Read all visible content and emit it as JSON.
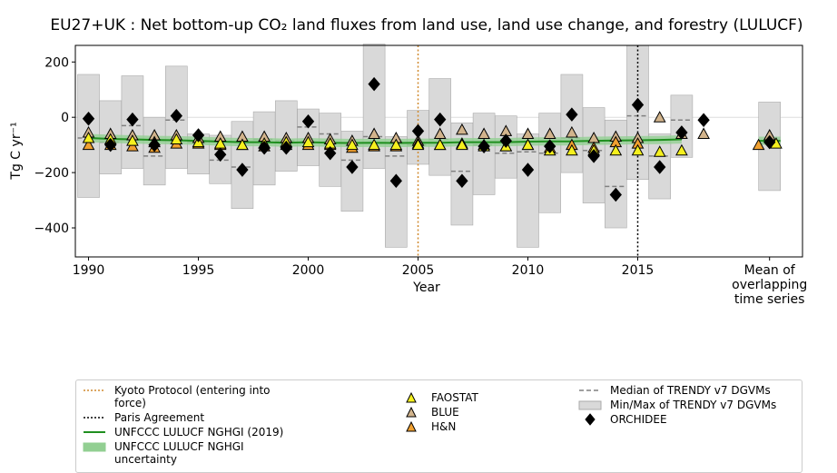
{
  "chart_data": {
    "type": "scatter",
    "title": "EU27+UK : Net bottom-up CO₂ land fluxes from land use, land use change, and forestry (LULUCF)",
    "xlabel": "Year",
    "ylabel": "Tg C yr⁻¹",
    "xlim": [
      1989.4,
      2022.5
    ],
    "ylim": [
      -505,
      260
    ],
    "xticks": [
      1990,
      1995,
      2000,
      2005,
      2010,
      2015,
      {
        "value": 2021,
        "label": "Mean of\noverlapping\ntime series"
      }
    ],
    "yticks": [
      {
        "value": -400,
        "label": "−400"
      },
      {
        "value": -200,
        "label": "−200"
      },
      0,
      200
    ],
    "x": [
      1990,
      1991,
      1992,
      1993,
      1994,
      1995,
      1996,
      1997,
      1998,
      1999,
      2000,
      2001,
      2002,
      2003,
      2004,
      2005,
      2006,
      2007,
      2008,
      2009,
      2010,
      2011,
      2012,
      2013,
      2014,
      2015,
      2016,
      2017,
      2018
    ],
    "events": [
      {
        "name": "Kyoto Protocol (entering into force)",
        "x": 2005,
        "color": "#d08a2e"
      },
      {
        "name": "Paris Agreement",
        "x": 2015,
        "color": "#000000"
      }
    ],
    "series": [
      {
        "name": "UNFCCC LULUCF NGHGI (2019)",
        "kind": "line",
        "color": "#1f8f1f",
        "values": [
          -75,
          -78,
          -80,
          -82,
          -83,
          -85,
          -88,
          -90,
          -90,
          -92,
          -90,
          -92,
          -93,
          -92,
          -93,
          -92,
          -92,
          -90,
          -90,
          -90,
          -88,
          -87,
          -87,
          -85,
          -84,
          -83,
          -82,
          -80,
          null
        ],
        "mean": -85,
        "uncertainty": {
          "name": "UNFCCC LULUCF NGHGI uncertainty",
          "color": "#92cf92",
          "value": 15
        }
      },
      {
        "name": "FAOSTAT",
        "kind": "triangle",
        "color": "#f5f01e",
        "values": [
          -75,
          -80,
          -85,
          -90,
          -80,
          -90,
          -95,
          -100,
          -95,
          -90,
          -90,
          -95,
          -100,
          -100,
          -100,
          -100,
          -100,
          -100,
          -105,
          -105,
          -100,
          -120,
          -120,
          -120,
          -120,
          -120,
          -125,
          -120,
          null
        ],
        "mean": -95
      },
      {
        "name": "BLUE",
        "kind": "triangle",
        "color": "#d2b48c",
        "values": [
          -55,
          -60,
          -65,
          -65,
          -65,
          -75,
          -70,
          -70,
          -70,
          -75,
          -75,
          -80,
          -85,
          -60,
          -75,
          -85,
          -60,
          -45,
          -60,
          -50,
          -60,
          -60,
          -55,
          -75,
          -70,
          -75,
          0,
          -60,
          -60
        ],
        "mean": -65
      },
      {
        "name": "H&N",
        "kind": "triangle",
        "color": "#f0a030",
        "values": [
          -100,
          -100,
          -105,
          -110,
          -95,
          -95,
          -100,
          -100,
          -105,
          -100,
          -100,
          -100,
          -110,
          -105,
          -105,
          -95,
          -100,
          -95,
          -100,
          -105,
          -100,
          -110,
          -100,
          -110,
          -90,
          -95,
          null,
          null,
          null
        ],
        "mean": -100
      },
      {
        "name": "Median of TRENDY v7 DGVMs",
        "kind": "dash",
        "color": "#808080",
        "values": [
          -75,
          -90,
          -30,
          -140,
          -10,
          -90,
          -155,
          -180,
          -80,
          -85,
          -35,
          -60,
          -155,
          -70,
          -140,
          -100,
          -80,
          -195,
          -100,
          -130,
          -125,
          -130,
          -75,
          -120,
          -250,
          5,
          -140,
          -10,
          null
        ],
        "mean": -95
      },
      {
        "name": "Min/Max of TRENDY v7 DGVMs",
        "kind": "range",
        "color": "#d9d9d9",
        "high": [
          155,
          60,
          150,
          0,
          185,
          -60,
          -65,
          -15,
          20,
          60,
          30,
          15,
          -50,
          265,
          -70,
          25,
          140,
          -20,
          15,
          5,
          -60,
          15,
          155,
          35,
          -10,
          260,
          -60,
          80,
          null
        ],
        "low": [
          -290,
          -205,
          -185,
          -245,
          -185,
          -205,
          -240,
          -330,
          -245,
          -195,
          -175,
          -250,
          -340,
          -185,
          -470,
          -170,
          -210,
          -390,
          -280,
          -220,
          -470,
          -345,
          -200,
          -310,
          -400,
          -225,
          -295,
          -145,
          null
        ],
        "mean_high": 55,
        "mean_low": -265
      },
      {
        "name": "ORCHIDEE",
        "kind": "diamond",
        "color": "#000000",
        "values": [
          -5,
          -100,
          -8,
          -100,
          5,
          -65,
          -135,
          -190,
          -110,
          -110,
          -15,
          -130,
          -180,
          120,
          -230,
          -50,
          -8,
          -230,
          -105,
          -85,
          -190,
          -105,
          10,
          -140,
          -280,
          45,
          -180,
          -55,
          -10
        ],
        "mean": -90
      }
    ]
  }
}
